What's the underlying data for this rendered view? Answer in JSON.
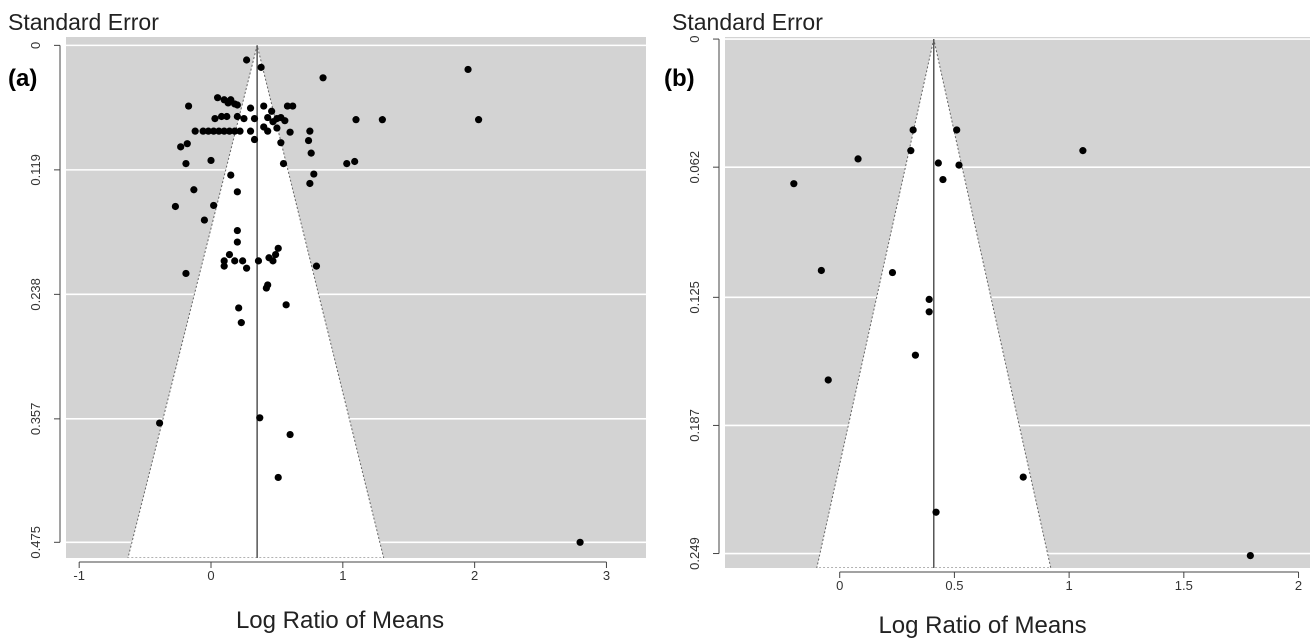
{
  "chart_data": [
    {
      "type": "scatter",
      "panel_label": "(a)",
      "ylabel": "Standard Error",
      "xlabel": "Log Ratio of Means",
      "xlim": [
        -1.1,
        3.3
      ],
      "ylim": [
        0.49,
        -0.008
      ],
      "x_ticks": [
        -1,
        0,
        1,
        2,
        3
      ],
      "x_tick_labels": [
        "-1",
        "0",
        "1",
        "2",
        "3"
      ],
      "y_ticks": [
        0,
        0.119,
        0.238,
        0.357,
        0.475
      ],
      "y_tick_labels": [
        "0",
        "0.119",
        "0.238",
        "0.357",
        "0.475"
      ],
      "grid": true,
      "center": 0.35,
      "funnel": {
        "apex_se": 0,
        "base_se": 0.49,
        "base_left": -0.63,
        "base_right": 1.31
      },
      "points": [
        [
          0.27,
          0.014
        ],
        [
          0.38,
          0.021
        ],
        [
          0.85,
          0.031
        ],
        [
          1.95,
          0.023
        ],
        [
          0.05,
          0.05
        ],
        [
          0.1,
          0.052
        ],
        [
          0.13,
          0.055
        ],
        [
          0.15,
          0.052
        ],
        [
          0.18,
          0.056
        ],
        [
          0.2,
          0.057
        ],
        [
          0.3,
          0.06
        ],
        [
          0.4,
          0.058
        ],
        [
          0.46,
          0.063
        ],
        [
          0.58,
          0.058
        ],
        [
          0.62,
          0.058
        ],
        [
          -0.17,
          0.058
        ],
        [
          0.08,
          0.068
        ],
        [
          0.12,
          0.068
        ],
        [
          0.03,
          0.07
        ],
        [
          0.2,
          0.068
        ],
        [
          0.25,
          0.07
        ],
        [
          0.33,
          0.07
        ],
        [
          0.43,
          0.069
        ],
        [
          0.47,
          0.073
        ],
        [
          0.5,
          0.07
        ],
        [
          0.53,
          0.069
        ],
        [
          0.56,
          0.072
        ],
        [
          1.1,
          0.071
        ],
        [
          1.3,
          0.071
        ],
        [
          2.03,
          0.071
        ],
        [
          -0.12,
          0.082
        ],
        [
          -0.06,
          0.082
        ],
        [
          -0.02,
          0.082
        ],
        [
          0.02,
          0.082
        ],
        [
          0.06,
          0.082
        ],
        [
          0.1,
          0.082
        ],
        [
          0.14,
          0.082
        ],
        [
          0.18,
          0.082
        ],
        [
          0.22,
          0.082
        ],
        [
          0.3,
          0.082
        ],
        [
          0.4,
          0.078
        ],
        [
          0.43,
          0.082
        ],
        [
          0.5,
          0.079
        ],
        [
          0.6,
          0.083
        ],
        [
          0.75,
          0.082
        ],
        [
          -0.18,
          0.094
        ],
        [
          -0.23,
          0.097
        ],
        [
          0.33,
          0.09
        ],
        [
          0.53,
          0.093
        ],
        [
          0.74,
          0.091
        ],
        [
          0.76,
          0.103
        ],
        [
          0.0,
          0.11
        ],
        [
          0.55,
          0.113
        ],
        [
          -0.19,
          0.113
        ],
        [
          1.03,
          0.113
        ],
        [
          1.09,
          0.111
        ],
        [
          0.15,
          0.124
        ],
        [
          0.78,
          0.123
        ],
        [
          0.75,
          0.132
        ],
        [
          -0.13,
          0.138
        ],
        [
          0.2,
          0.14
        ],
        [
          -0.27,
          0.154
        ],
        [
          0.02,
          0.153
        ],
        [
          -0.05,
          0.167
        ],
        [
          0.2,
          0.177
        ],
        [
          0.2,
          0.188
        ],
        [
          0.51,
          0.194
        ],
        [
          0.14,
          0.2
        ],
        [
          0.49,
          0.2
        ],
        [
          0.44,
          0.203
        ],
        [
          0.1,
          0.206
        ],
        [
          0.18,
          0.206
        ],
        [
          0.24,
          0.206
        ],
        [
          0.36,
          0.206
        ],
        [
          0.47,
          0.206
        ],
        [
          0.27,
          0.213
        ],
        [
          0.1,
          0.211
        ],
        [
          0.8,
          0.211
        ],
        [
          -0.19,
          0.218
        ],
        [
          0.43,
          0.229
        ],
        [
          0.42,
          0.232
        ],
        [
          0.57,
          0.248
        ],
        [
          0.21,
          0.251
        ],
        [
          0.23,
          0.265
        ],
        [
          -0.39,
          0.361
        ],
        [
          0.37,
          0.356
        ],
        [
          0.6,
          0.372
        ],
        [
          0.51,
          0.413
        ],
        [
          2.8,
          0.475
        ]
      ]
    },
    {
      "type": "scatter",
      "panel_label": "(b)",
      "ylabel": "Standard Error",
      "xlabel": "Log Ratio of Means",
      "xlim": [
        -0.5,
        2.05
      ],
      "ylim": [
        0.256,
        -0.001
      ],
      "x_ticks": [
        0,
        0.5,
        1,
        1.5,
        2
      ],
      "x_tick_labels": [
        "0",
        "0.5",
        "1",
        "1.5",
        "2"
      ],
      "y_ticks": [
        0,
        0.062,
        0.125,
        0.187,
        0.249
      ],
      "y_tick_labels": [
        "0",
        "0.062",
        "0.125",
        "0.187",
        "0.249"
      ],
      "grid": true,
      "center": 0.41,
      "funnel": {
        "apex_se": 0,
        "base_se": 0.256,
        "base_left": -0.1,
        "base_right": 0.92
      },
      "points": [
        [
          0.32,
          0.044
        ],
        [
          0.51,
          0.044
        ],
        [
          0.31,
          0.054
        ],
        [
          1.06,
          0.054
        ],
        [
          0.08,
          0.058
        ],
        [
          0.43,
          0.06
        ],
        [
          0.52,
          0.061
        ],
        [
          0.45,
          0.068
        ],
        [
          -0.2,
          0.07
        ],
        [
          -0.08,
          0.112
        ],
        [
          0.23,
          0.113
        ],
        [
          0.39,
          0.126
        ],
        [
          0.39,
          0.132
        ],
        [
          0.33,
          0.153
        ],
        [
          -0.05,
          0.165
        ],
        [
          0.8,
          0.212
        ],
        [
          0.42,
          0.229
        ],
        [
          1.79,
          0.25
        ]
      ]
    }
  ]
}
